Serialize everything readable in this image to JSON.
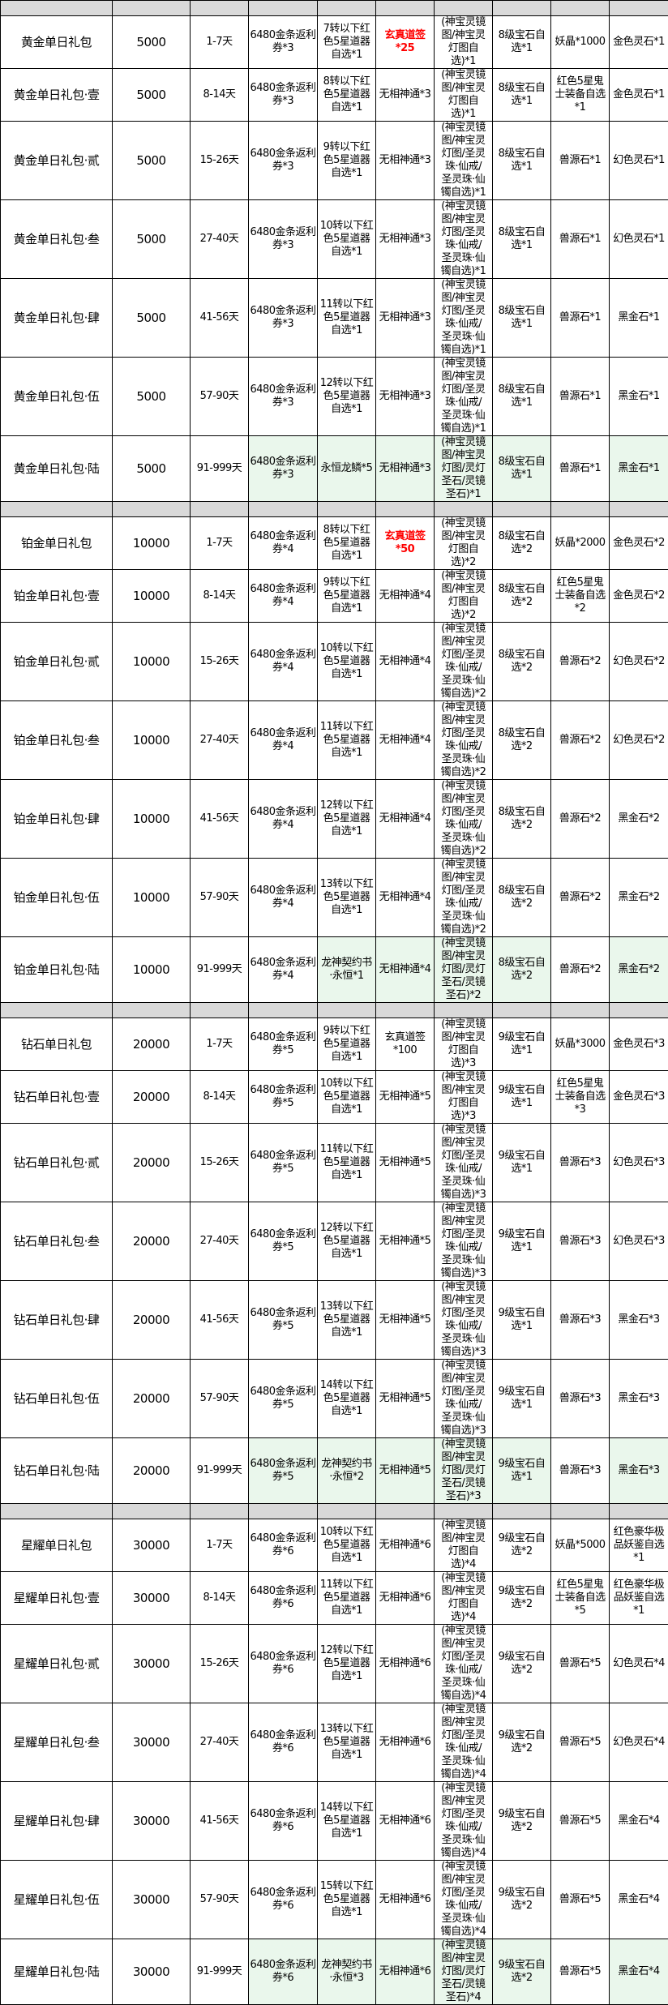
{
  "colors": {
    "header_bg": "#d9d9d9",
    "highlight_bg": "#eaf7ec",
    "emphasis_text": "#ff0000",
    "border": "#000000"
  },
  "groups": [
    {
      "rows": [
        {
          "cells": [
            "黄金单日礼包",
            "5000",
            "1-7天",
            "6480金条返利\n券*3",
            "7转以下红\n色5星道器\n自选*1",
            "玄真道签\n*25",
            "(神宝灵镜\n图/神宝灵\n灯图自\n选)*1",
            "8级宝石自\n选*1",
            "妖晶*1000",
            "金色灵石*1"
          ],
          "red": [
            5
          ],
          "green": []
        },
        {
          "cells": [
            "黄金单日礼包·壹",
            "5000",
            "8-14天",
            "6480金条返利\n券*3",
            "8转以下红\n色5星道器\n自选*1",
            "无相神通*3",
            "(神宝灵镜\n图/神宝灵\n灯图自\n选)*1",
            "8级宝石自\n选*1",
            "红色5星鬼\n士装备自选\n*1",
            "金色灵石*1"
          ],
          "red": [],
          "green": []
        },
        {
          "cells": [
            "黄金单日礼包·贰",
            "5000",
            "15-26天",
            "6480金条返利\n券*3",
            "9转以下红\n色5星道器\n自选*1",
            "无相神通*3",
            "(神宝灵镜\n图/神宝灵\n灯图/圣灵\n珠·仙戒/\n圣灵珠·仙\n镯自选)*1",
            "8级宝石自\n选*1",
            "兽源石*1",
            "幻色灵石*1"
          ],
          "red": [],
          "green": []
        },
        {
          "cells": [
            "黄金单日礼包·叁",
            "5000",
            "27-40天",
            "6480金条返利\n券*3",
            "10转以下红\n色5星道器\n自选*1",
            "无相神通*3",
            "(神宝灵镜\n图/神宝灵\n灯图/圣灵\n珠·仙戒/\n圣灵珠·仙\n镯自选)*1",
            "8级宝石自\n选*1",
            "兽源石*1",
            "幻色灵石*1"
          ],
          "red": [],
          "green": []
        },
        {
          "cells": [
            "黄金单日礼包·肆",
            "5000",
            "41-56天",
            "6480金条返利\n券*3",
            "11转以下红\n色5星道器\n自选*1",
            "无相神通*3",
            "(神宝灵镜\n图/神宝灵\n灯图/圣灵\n珠·仙戒/\n圣灵珠·仙\n镯自选)*1",
            "8级宝石自\n选*1",
            "兽源石*1",
            "黑金石*1"
          ],
          "red": [],
          "green": []
        },
        {
          "cells": [
            "黄金单日礼包·伍",
            "5000",
            "57-90天",
            "6480金条返利\n券*3",
            "12转以下红\n色5星道器\n自选*1",
            "无相神通*3",
            "(神宝灵镜\n图/神宝灵\n灯图/圣灵\n珠·仙戒/\n圣灵珠·仙\n镯自选)*1",
            "8级宝石自\n选*1",
            "兽源石*1",
            "黑金石*1"
          ],
          "red": [],
          "green": []
        },
        {
          "cells": [
            "黄金单日礼包·陆",
            "5000",
            "91-999天",
            "6480金条返利\n券*3",
            "永恒龙鳞*5",
            "无相神通*3",
            "(神宝灵镜\n图/神宝灵\n灯图/灵灯\n圣石/灵镜\n圣石)*1",
            "8级宝石自\n选*1",
            "兽源石*1",
            "黑金石*1"
          ],
          "red": [],
          "green": [
            3,
            4,
            5,
            6,
            7,
            9
          ]
        }
      ]
    },
    {
      "rows": [
        {
          "cells": [
            "铂金单日礼包",
            "10000",
            "1-7天",
            "6480金条返利\n券*4",
            "8转以下红\n色5星道器\n自选*1",
            "玄真道签\n*50",
            "(神宝灵镜\n图/神宝灵\n灯图自\n选)*2",
            "8级宝石自\n选*2",
            "妖晶*2000",
            "金色灵石*2"
          ],
          "red": [
            5
          ],
          "green": []
        },
        {
          "cells": [
            "铂金单日礼包·壹",
            "10000",
            "8-14天",
            "6480金条返利\n券*4",
            "9转以下红\n色5星道器\n自选*1",
            "无相神通*4",
            "(神宝灵镜\n图/神宝灵\n灯图自\n选)*2",
            "8级宝石自\n选*2",
            "红色5星鬼\n士装备自选\n*2",
            "金色灵石*2"
          ],
          "red": [],
          "green": []
        },
        {
          "cells": [
            "铂金单日礼包·贰",
            "10000",
            "15-26天",
            "6480金条返利\n券*4",
            "10转以下红\n色5星道器\n自选*1",
            "无相神通*4",
            "(神宝灵镜\n图/神宝灵\n灯图/圣灵\n珠·仙戒/\n圣灵珠·仙\n镯自选)*2",
            "8级宝石自\n选*2",
            "兽源石*2",
            "幻色灵石*2"
          ],
          "red": [],
          "green": []
        },
        {
          "cells": [
            "铂金单日礼包·叁",
            "10000",
            "27-40天",
            "6480金条返利\n券*4",
            "11转以下红\n色5星道器\n自选*1",
            "无相神通*4",
            "(神宝灵镜\n图/神宝灵\n灯图/圣灵\n珠·仙戒/\n圣灵珠·仙\n镯自选)*2",
            "8级宝石自\n选*2",
            "兽源石*2",
            "幻色灵石*2"
          ],
          "red": [],
          "green": []
        },
        {
          "cells": [
            "铂金单日礼包·肆",
            "10000",
            "41-56天",
            "6480金条返利\n券*4",
            "12转以下红\n色5星道器\n自选*1",
            "无相神通*4",
            "(神宝灵镜\n图/神宝灵\n灯图/圣灵\n珠·仙戒/\n圣灵珠·仙\n镯自选)*2",
            "8级宝石自\n选*2",
            "兽源石*2",
            "黑金石*2"
          ],
          "red": [],
          "green": []
        },
        {
          "cells": [
            "铂金单日礼包·伍",
            "10000",
            "57-90天",
            "6480金条返利\n券*4",
            "13转以下红\n色5星道器\n自选*1",
            "无相神通*4",
            "(神宝灵镜\n图/神宝灵\n灯图/圣灵\n珠·仙戒/\n圣灵珠·仙\n镯自选)*2",
            "8级宝石自\n选*2",
            "兽源石*2",
            "黑金石*2"
          ],
          "red": [],
          "green": []
        },
        {
          "cells": [
            "铂金单日礼包·陆",
            "10000",
            "91-999天",
            "6480金条返利\n券*4",
            "龙神契约书\n·永恒*1",
            "无相神通*4",
            "(神宝灵镜\n图/神宝灵\n灯图/灵灯\n圣石/灵镜\n圣石)*2",
            "8级宝石自\n选*2",
            "兽源石*2",
            "黑金石*2"
          ],
          "red": [],
          "green": [
            4,
            5,
            6,
            7,
            9
          ]
        }
      ]
    },
    {
      "rows": [
        {
          "cells": [
            "钻石单日礼包",
            "20000",
            "1-7天",
            "6480金条返利\n券*5",
            "9转以下红\n色5星道器\n自选*1",
            "玄真道签\n*100",
            "(神宝灵镜\n图/神宝灵\n灯图自\n选)*3",
            "9级宝石自\n选*1",
            "妖晶*3000",
            "金色灵石*3"
          ],
          "red": [],
          "green": []
        },
        {
          "cells": [
            "钻石单日礼包·壹",
            "20000",
            "8-14天",
            "6480金条返利\n券*5",
            "10转以下红\n色5星道器\n自选*1",
            "无相神通*5",
            "(神宝灵镜\n图/神宝灵\n灯图自\n选)*3",
            "9级宝石自\n选*1",
            "红色5星鬼\n士装备自选\n*3",
            "金色灵石*3"
          ],
          "red": [],
          "green": []
        },
        {
          "cells": [
            "钻石单日礼包·贰",
            "20000",
            "15-26天",
            "6480金条返利\n券*5",
            "11转以下红\n色5星道器\n自选*1",
            "无相神通*5",
            "(神宝灵镜\n图/神宝灵\n灯图/圣灵\n珠·仙戒/\n圣灵珠·仙\n镯自选)*3",
            "9级宝石自\n选*1",
            "兽源石*3",
            "幻色灵石*3"
          ],
          "red": [],
          "green": []
        },
        {
          "cells": [
            "钻石单日礼包·叁",
            "20000",
            "27-40天",
            "6480金条返利\n券*5",
            "12转以下红\n色5星道器\n自选*1",
            "无相神通*5",
            "(神宝灵镜\n图/神宝灵\n灯图/圣灵\n珠·仙戒/\n圣灵珠·仙\n镯自选)*3",
            "9级宝石自\n选*1",
            "兽源石*3",
            "幻色灵石*3"
          ],
          "red": [],
          "green": []
        },
        {
          "cells": [
            "钻石单日礼包·肆",
            "20000",
            "41-56天",
            "6480金条返利\n券*5",
            "13转以下红\n色5星道器\n自选*1",
            "无相神通*5",
            "(神宝灵镜\n图/神宝灵\n灯图/圣灵\n珠·仙戒/\n圣灵珠·仙\n镯自选)*3",
            "9级宝石自\n选*1",
            "兽源石*3",
            "黑金石*3"
          ],
          "red": [],
          "green": []
        },
        {
          "cells": [
            "钻石单日礼包·伍",
            "20000",
            "57-90天",
            "6480金条返利\n券*5",
            "14转以下红\n色5星道器\n自选*1",
            "无相神通*5",
            "(神宝灵镜\n图/神宝灵\n灯图/圣灵\n珠·仙戒/\n圣灵珠·仙\n镯自选)*3",
            "9级宝石自\n选*1",
            "兽源石*3",
            "黑金石*3"
          ],
          "red": [],
          "green": []
        },
        {
          "cells": [
            "钻石单日礼包·陆",
            "20000",
            "91-999天",
            "6480金条返利\n券*5",
            "龙神契约书\n·永恒*2",
            "无相神通*5",
            "(神宝灵镜\n图/神宝灵\n灯图/灵灯\n圣石/灵镜\n圣石)*3",
            "9级宝石自\n选*1",
            "兽源石*3",
            "黑金石*3"
          ],
          "red": [],
          "green": [
            3,
            4,
            5,
            6,
            7,
            9
          ]
        }
      ]
    },
    {
      "rows": [
        {
          "cells": [
            "星耀单日礼包",
            "30000",
            "1-7天",
            "6480金条返利\n券*6",
            "10转以下红\n色5星道器\n自选*1",
            "无相神通*6",
            "(神宝灵镜\n图/神宝灵\n灯图自\n选)*4",
            "9级宝石自\n选*2",
            "妖晶*5000",
            "红色豪华极\n品妖鉴自选\n*1"
          ],
          "red": [],
          "green": []
        },
        {
          "cells": [
            "星耀单日礼包·壹",
            "30000",
            "8-14天",
            "6480金条返利\n券*6",
            "11转以下红\n色5星道器\n自选*1",
            "无相神通*6",
            "(神宝灵镜\n图/神宝灵\n灯图自\n选)*4",
            "9级宝石自\n选*2",
            "红色5星鬼\n士装备自选\n*5",
            "红色豪华极\n品妖鉴自选\n*1"
          ],
          "red": [],
          "green": []
        },
        {
          "cells": [
            "星耀单日礼包·贰",
            "30000",
            "15-26天",
            "6480金条返利\n券*6",
            "12转以下红\n色5星道器\n自选*1",
            "无相神通*6",
            "(神宝灵镜\n图/神宝灵\n灯图/圣灵\n珠·仙戒/\n圣灵珠·仙\n镯自选)*4",
            "9级宝石自\n选*2",
            "兽源石*5",
            "幻色灵石*4"
          ],
          "red": [],
          "green": []
        },
        {
          "cells": [
            "星耀单日礼包·叁",
            "30000",
            "27-40天",
            "6480金条返利\n券*6",
            "13转以下红\n色5星道器\n自选*1",
            "无相神通*6",
            "(神宝灵镜\n图/神宝灵\n灯图/圣灵\n珠·仙戒/\n圣灵珠·仙\n镯自选)*4",
            "9级宝石自\n选*2",
            "兽源石*5",
            "幻色灵石*4"
          ],
          "red": [],
          "green": []
        },
        {
          "cells": [
            "星耀单日礼包·肆",
            "30000",
            "41-56天",
            "6480金条返利\n券*6",
            "14转以下红\n色5星道器\n自选*1",
            "无相神通*6",
            "(神宝灵镜\n图/神宝灵\n灯图/圣灵\n珠·仙戒/\n圣灵珠·仙\n镯自选)*4",
            "9级宝石自\n选*2",
            "兽源石*5",
            "黑金石*4"
          ],
          "red": [],
          "green": []
        },
        {
          "cells": [
            "星耀单日礼包·伍",
            "30000",
            "57-90天",
            "6480金条返利\n券*6",
            "15转以下红\n色5星道器\n自选*1",
            "无相神通*6",
            "(神宝灵镜\n图/神宝灵\n灯图/圣灵\n珠·仙戒/\n圣灵珠·仙\n镯自选)*4",
            "9级宝石自\n选*2",
            "兽源石*5",
            "黑金石*4"
          ],
          "red": [],
          "green": []
        },
        {
          "cells": [
            "星耀单日礼包·陆",
            "30000",
            "91-999天",
            "6480金条返利\n券*6",
            "龙神契约书\n·永恒*3",
            "无相神通*6",
            "(神宝灵镜\n图/神宝灵\n灯图/灵灯\n圣石/灵镜\n圣石)*4",
            "9级宝石自\n选*2",
            "兽源石*5",
            "黑金石*4"
          ],
          "red": [],
          "green": [
            3,
            4,
            5,
            6,
            7,
            9
          ]
        }
      ]
    }
  ]
}
